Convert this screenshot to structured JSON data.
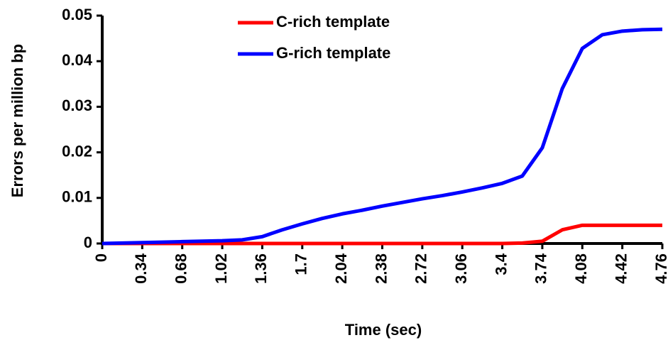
{
  "chart_data": {
    "type": "line",
    "x_label": "Time (sec)",
    "y_label": "Errors per million bp",
    "x": [
      0,
      0.17,
      0.34,
      0.51,
      0.68,
      0.85,
      1.02,
      1.19,
      1.36,
      1.53,
      1.7,
      1.87,
      2.04,
      2.21,
      2.38,
      2.55,
      2.72,
      2.89,
      3.06,
      3.23,
      3.4,
      3.57,
      3.74,
      3.91,
      4.08,
      4.25,
      4.42,
      4.59,
      4.76
    ],
    "series": [
      {
        "name": "C-rich template",
        "color": "#ff0000",
        "values": [
          0,
          0,
          0,
          0,
          0,
          0,
          0,
          0,
          0,
          0,
          0,
          0,
          0,
          0,
          0,
          0,
          0,
          0,
          0,
          0,
          0,
          0.0001,
          0.0005,
          0.003,
          0.004,
          0.004,
          0.004,
          0.004,
          0.004
        ]
      },
      {
        "name": "G-rich template",
        "color": "#0000ff",
        "values": [
          0,
          0.0001,
          0.0002,
          0.0003,
          0.0004,
          0.0005,
          0.0006,
          0.0008,
          0.0015,
          0.003,
          0.0043,
          0.0055,
          0.0065,
          0.0073,
          0.0082,
          0.009,
          0.0098,
          0.0105,
          0.0113,
          0.0122,
          0.0132,
          0.0148,
          0.021,
          0.034,
          0.0428,
          0.0458,
          0.0466,
          0.0469,
          0.047
        ]
      }
    ],
    "xlim": [
      0,
      4.76
    ],
    "xticks": [
      0,
      0.34,
      0.68,
      1.02,
      1.36,
      1.7,
      2.04,
      2.38,
      2.72,
      3.06,
      3.4,
      3.74,
      4.08,
      4.42,
      4.76
    ],
    "ylim": [
      0,
      0.05
    ],
    "yticks": [
      0,
      0.01,
      0.02,
      0.03,
      0.04,
      0.05
    ],
    "legend": "top"
  }
}
